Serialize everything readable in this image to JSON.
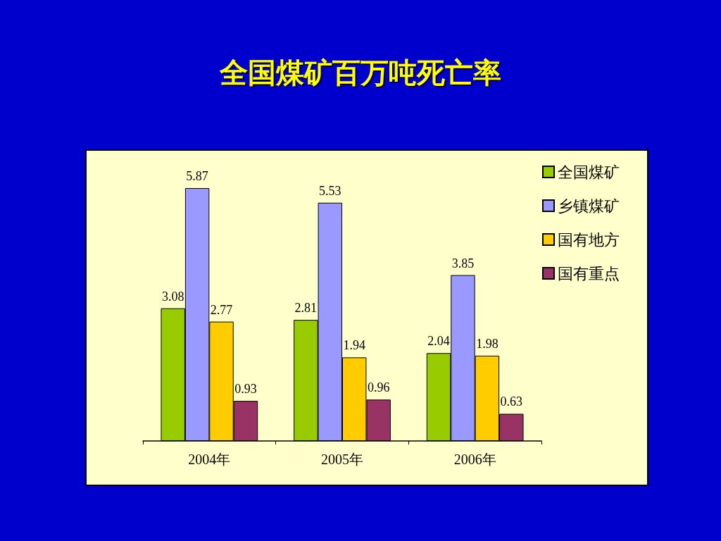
{
  "chart_data": {
    "type": "bar",
    "title": "全国煤矿百万吨死亡率",
    "categories": [
      "2004年",
      "2005年",
      "2006年"
    ],
    "series": [
      {
        "name": "全国煤矿",
        "color": "#99cc00",
        "values": [
          3.08,
          2.81,
          2.04
        ]
      },
      {
        "name": "乡镇煤矿",
        "color": "#9999ff",
        "values": [
          5.87,
          5.53,
          3.85
        ]
      },
      {
        "name": "国有地方",
        "color": "#ffcc00",
        "values": [
          2.77,
          1.94,
          1.98
        ]
      },
      {
        "name": "国有重点",
        "color": "#993366",
        "values": [
          0.93,
          0.96,
          0.63
        ]
      }
    ],
    "data_labels": true,
    "legend": "top right",
    "tick_labels": "x"
  }
}
